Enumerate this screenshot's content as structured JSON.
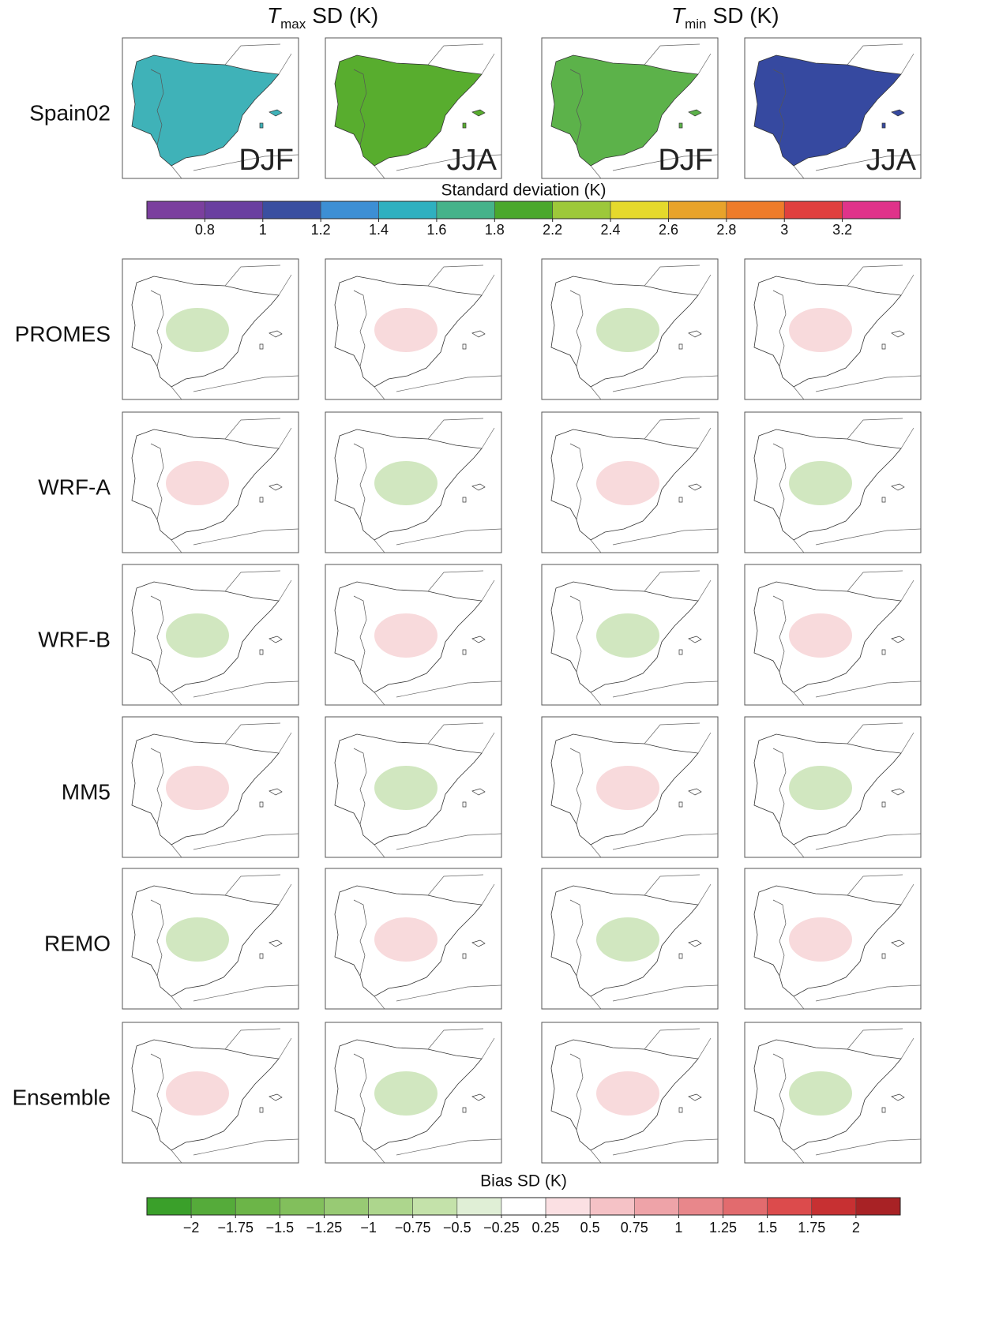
{
  "headers": [
    {
      "variable": "T",
      "subscript": "max",
      "suffix": "SD (K)"
    },
    {
      "variable": "T",
      "subscript": "min",
      "suffix": "SD (K)"
    }
  ],
  "seasons": [
    "DJF",
    "JJA",
    "DJF",
    "JJA"
  ],
  "rows": [
    "Spain02",
    "PROMES",
    "WRF-A",
    "WRF-B",
    "MM5",
    "REMO",
    "Ensemble"
  ],
  "colorbar_sd": {
    "title": "Standard deviation (K)",
    "colors": [
      "#7b3f9e",
      "#6a3fa0",
      "#3a4fa0",
      "#3d8fd4",
      "#2fb0c0",
      "#45b38a",
      "#4aa82c",
      "#9dc83a",
      "#e5d92c",
      "#e8a32a",
      "#ee7c2a",
      "#e0403e",
      "#e0338a"
    ],
    "ticks": [
      0.8,
      1,
      1.2,
      1.4,
      1.6,
      1.8,
      2.2,
      2.4,
      2.6,
      2.8,
      3,
      3.2
    ]
  },
  "colorbar_bias": {
    "title": "Bias SD (K)",
    "colors": [
      "#3aa02a",
      "#55ab3a",
      "#6cb548",
      "#82bf5c",
      "#98ca74",
      "#add68d",
      "#c4e2aa",
      "#e0efd6",
      "#ffffff",
      "#fbe0e3",
      "#f5c2c6",
      "#eea3a8",
      "#e8878b",
      "#e26b6e",
      "#dc4b4c",
      "#c73032",
      "#a82225"
    ],
    "ticks": [
      {
        "value": -2,
        "label": "−2"
      },
      {
        "value": -1.75,
        "label": "−1.75"
      },
      {
        "value": -1.5,
        "label": "−1.5"
      },
      {
        "value": -1.25,
        "label": "−1.25"
      },
      {
        "value": -1,
        "label": "−1"
      },
      {
        "value": -0.75,
        "label": "−0.75"
      },
      {
        "value": -0.5,
        "label": "−0.5"
      },
      {
        "value": -0.25,
        "label": "−0.25"
      },
      0.25,
      0.5,
      0.75,
      1,
      1.25,
      1.5,
      1.75,
      2
    ]
  }
}
